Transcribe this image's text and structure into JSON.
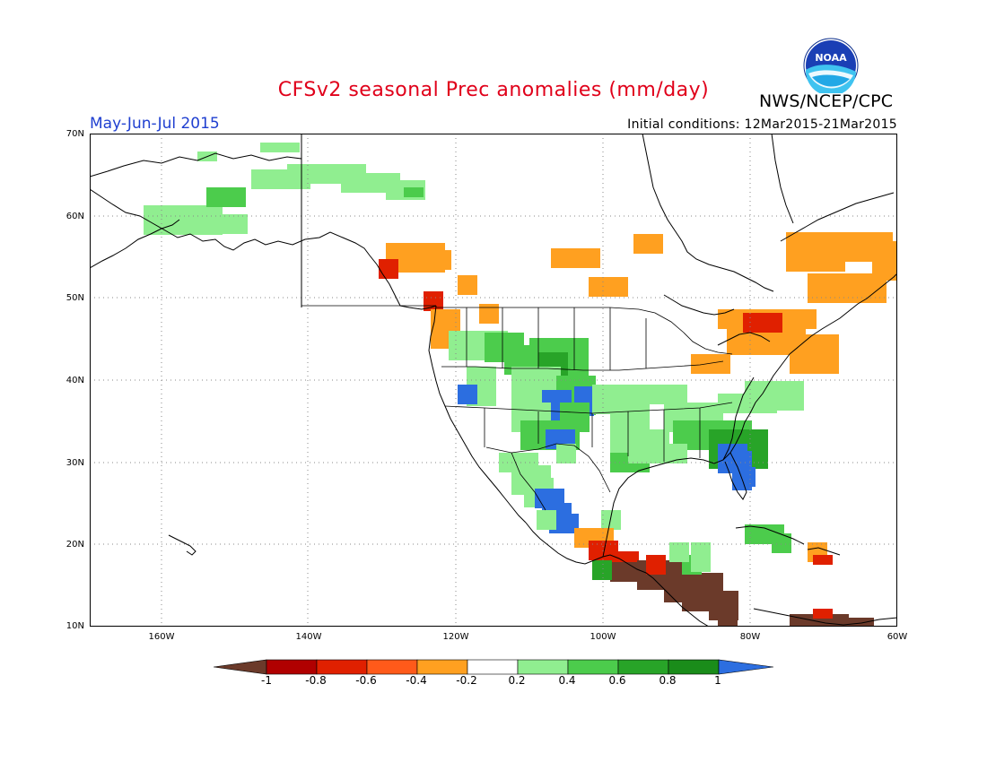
{
  "title": "CFSv2 seasonal Prec anomalies (mm/day)",
  "period": "May-Jun-Jul 2015",
  "initial_conditions": "Initial conditions: 12Mar2015-21Mar2015",
  "agency": "NWS/NCEP/CPC",
  "logo_text": "NOAA",
  "lat_labels": [
    "70N",
    "60N",
    "50N",
    "40N",
    "30N",
    "20N",
    "10N"
  ],
  "lon_labels": [
    "160W",
    "140W",
    "120W",
    "100W",
    "80W",
    "60W"
  ],
  "colorbar": {
    "labels": [
      "-1",
      "-0.8",
      "-0.6",
      "-0.4",
      "-0.2",
      "0.2",
      "0.4",
      "0.6",
      "0.8",
      "1"
    ],
    "colors": [
      "#6b3a2a",
      "#b00000",
      "#e02000",
      "#ff5a1a",
      "#ffa020",
      "#ffffff",
      "#90ee90",
      "#4ccc4c",
      "#28a428",
      "#1a8c1a",
      "#2c6ee0"
    ]
  },
  "colors": {
    "title": "#e0001a",
    "period": "#1f3fd0",
    "orange": "#ffa020",
    "red_orange": "#ff5a1a",
    "red": "#e02000",
    "dark_red": "#b00000",
    "brown": "#6b3a2a",
    "light_green": "#90ee90",
    "green": "#4ccc4c",
    "dark_green": "#28a428",
    "blue": "#2c6ee0"
  }
}
